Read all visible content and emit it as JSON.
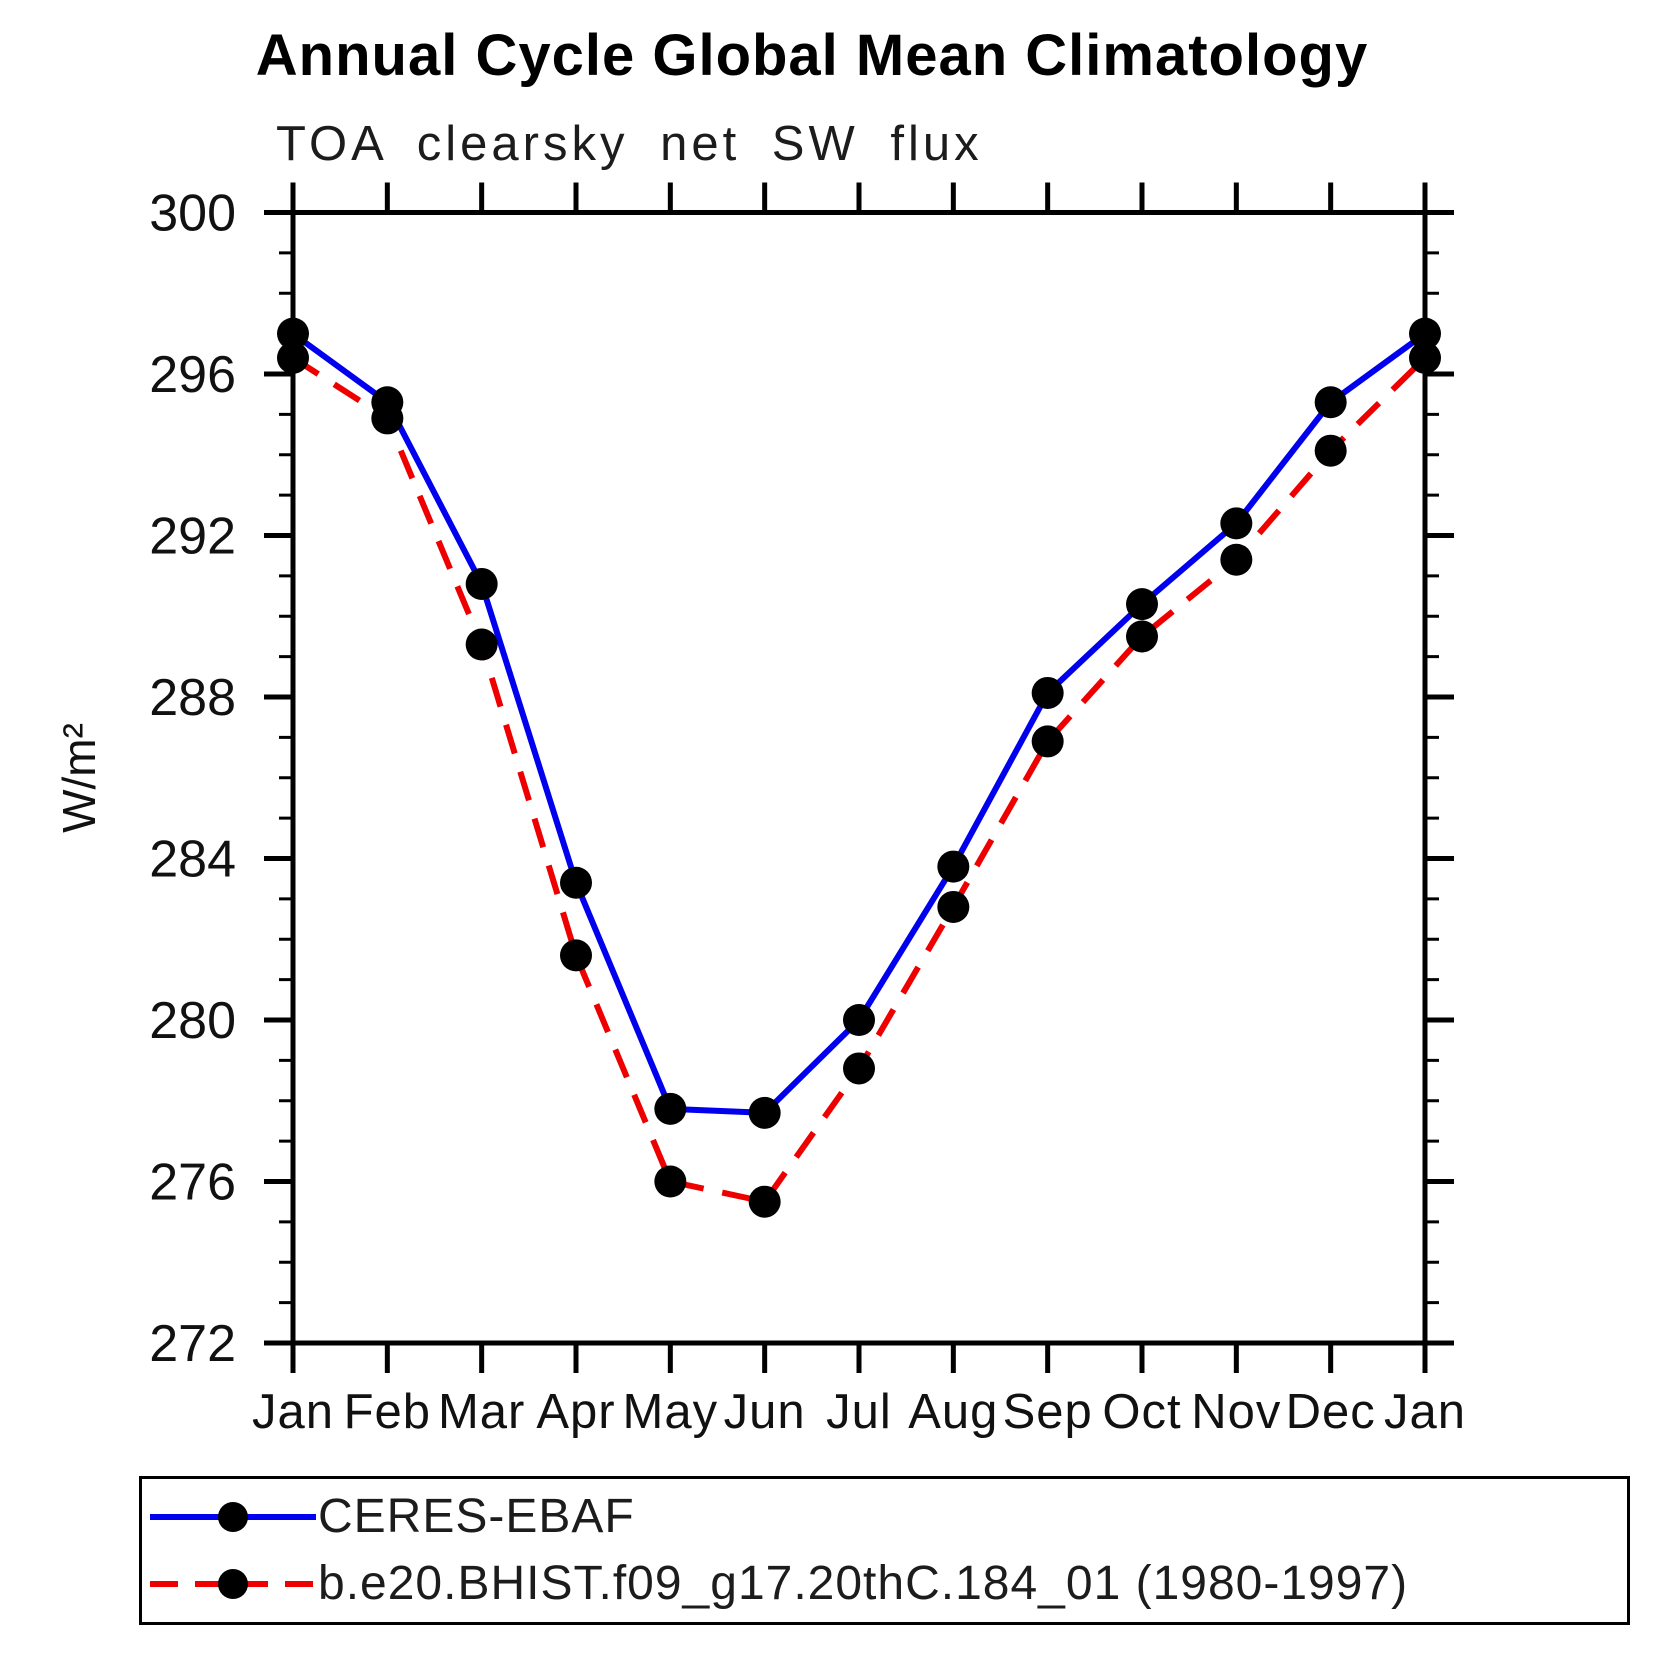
{
  "title": "Annual Cycle Global Mean Climatology",
  "subtitle": "TOA clearsky net SW flux",
  "chart_data": {
    "type": "line",
    "x_categories": [
      "Jan",
      "Feb",
      "Mar",
      "Apr",
      "May",
      "Jun",
      "Jul",
      "Aug",
      "Sep",
      "Oct",
      "Nov",
      "Dec",
      "Jan"
    ],
    "xlabel": "",
    "ylabel": "W/m²",
    "ylim": [
      272,
      300
    ],
    "y_major_ticks": [
      272,
      276,
      280,
      284,
      288,
      292,
      296,
      300
    ],
    "y_minor_step": 1,
    "grid": false,
    "legend_position": "bottom-left-box",
    "marker_color": "#000000",
    "series": [
      {
        "name": "CERES-EBAF",
        "color": "#0000ee",
        "style": "solid",
        "marker": "black-dot",
        "values": [
          297.0,
          295.3,
          290.8,
          283.4,
          277.8,
          277.7,
          280.0,
          283.8,
          288.1,
          290.3,
          292.3,
          295.3,
          297.0
        ]
      },
      {
        "name": "b.e20.BHIST.f09_g17.20thC.184_01 (1980-1997)",
        "color": "#ee0000",
        "style": "dashed",
        "marker": "black-dot",
        "values": [
          296.4,
          294.9,
          289.3,
          281.6,
          276.0,
          275.5,
          278.8,
          282.8,
          286.9,
          289.5,
          291.4,
          294.1,
          296.4
        ]
      }
    ]
  }
}
